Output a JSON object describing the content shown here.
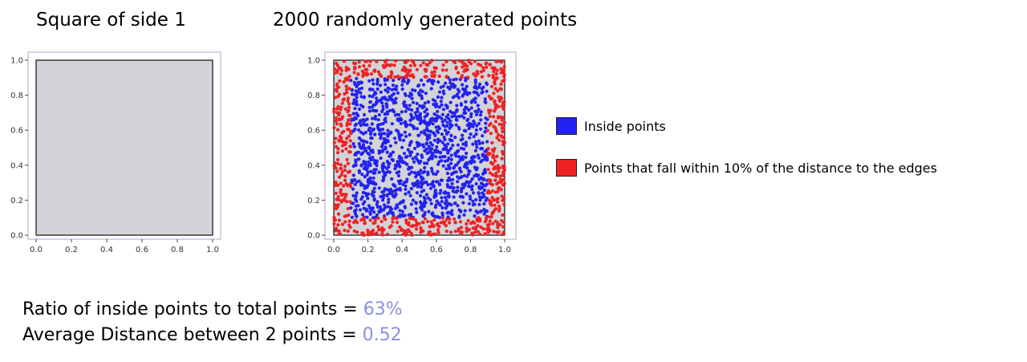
{
  "titles": {
    "left": "Square of side 1",
    "right": "2000 randomly generated points"
  },
  "legend": {
    "inside": {
      "label": "Inside points",
      "color": "#2222ee"
    },
    "edge": {
      "label": "Points that fall within 10% of the distance to the edges",
      "color": "#ee2222"
    }
  },
  "stats": {
    "ratio_label": "Ratio of inside points to total points = ",
    "ratio_value": "63%",
    "distance_label": "Average Distance between 2 points = ",
    "distance_value": "0.52",
    "value_color": "#8a8fe0"
  },
  "chart_data": [
    {
      "type": "area",
      "title": "Square of side 1",
      "xlim": [
        0,
        1
      ],
      "ylim": [
        0,
        1
      ],
      "xticks": [
        "0.0",
        "0.2",
        "0.4",
        "0.6",
        "0.8",
        "1.0"
      ],
      "yticks": [
        "0.0",
        "0.2",
        "0.4",
        "0.6",
        "0.8",
        "1.0"
      ],
      "square": {
        "x": [
          0,
          1
        ],
        "y": [
          0,
          1
        ],
        "fill": "#d3d3d8"
      },
      "grid": false
    },
    {
      "type": "scatter",
      "title": "2000 randomly generated points",
      "xlim": [
        0,
        1
      ],
      "ylim": [
        0,
        1
      ],
      "xticks": [
        "0.0",
        "0.2",
        "0.4",
        "0.6",
        "0.8",
        "1.0"
      ],
      "yticks": [
        "0.0",
        "0.2",
        "0.4",
        "0.6",
        "0.8",
        "1.0"
      ],
      "n_points": 2000,
      "edge_fraction": 0.1,
      "inside_ratio": 0.63,
      "series": [
        {
          "name": "Inside points",
          "color": "#2222ee"
        },
        {
          "name": "Points that fall within 10% of the distance to the edges",
          "color": "#ee2222"
        }
      ],
      "square": {
        "x": [
          0,
          1
        ],
        "y": [
          0,
          1
        ],
        "fill": "#d3d3d8"
      },
      "grid": false
    }
  ]
}
